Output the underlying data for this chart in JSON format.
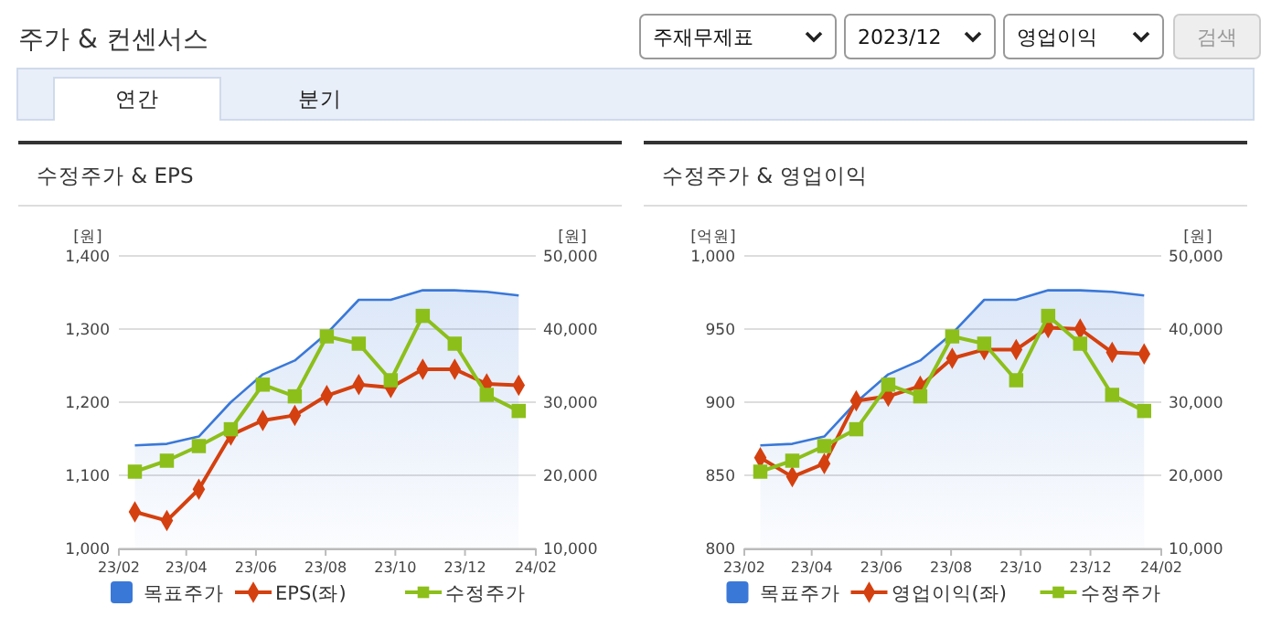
{
  "chart_data": [
    {
      "type": "other",
      "title": "주가 & 컨센서스",
      "annotations": [
        "주재무제표",
        "2023/12",
        "영업이익",
        "검색",
        "연간",
        "분기"
      ]
    },
    {
      "type": "line",
      "title": "수정주가 & EPS",
      "ylabel": "[원]",
      "y2label": "[원]",
      "x": [
        "2023-02-15",
        "2023-03-15",
        "2023-04-12",
        "2023-05-10",
        "2023-06-07",
        "2023-07-05",
        "2023-08-02",
        "2023-08-30",
        "2023-09-27",
        "2023-10-25",
        "2023-11-22",
        "2023-12-20",
        "2024-01-17"
      ],
      "xlim": [
        "2023-02",
        "2024-02"
      ],
      "xticks": [
        {
          "value": "2023-02",
          "label": "23/02"
        },
        {
          "value": "2023-04",
          "label": "23/04"
        },
        {
          "value": "2023-06",
          "label": "23/06"
        },
        {
          "value": "2023-08",
          "label": "23/08"
        },
        {
          "value": "2023-10",
          "label": "23/10"
        },
        {
          "value": "2023-12",
          "label": "23/12"
        },
        {
          "value": "2024-02",
          "label": "24/02"
        }
      ],
      "ylim": [
        1000,
        1400
      ],
      "yticks": [
        {
          "value": 1000,
          "label": "1,000"
        },
        {
          "value": 1100,
          "label": "1,100"
        },
        {
          "value": 1200,
          "label": "1,200"
        },
        {
          "value": 1300,
          "label": "1,300"
        },
        {
          "value": 1400,
          "label": "1,400"
        }
      ],
      "y2lim": [
        10000,
        50000
      ],
      "y2ticks": [
        {
          "value": 10000,
          "label": "10,000"
        },
        {
          "value": 20000,
          "label": "20,000"
        },
        {
          "value": 30000,
          "label": "30,000"
        },
        {
          "value": 40000,
          "label": "40,000"
        },
        {
          "value": 50000,
          "label": "50,000"
        }
      ],
      "grid": "y",
      "legend": "bottom",
      "series": [
        {
          "name": "목표주가",
          "type": "area",
          "axis": "y2",
          "color": "#3a78d8",
          "values": [
            24100,
            24300,
            25300,
            30000,
            33800,
            35700,
            39400,
            44000,
            44000,
            45300,
            45300,
            45100,
            44600
          ]
        },
        {
          "name": "EPS(좌)",
          "type": "line",
          "color": "#d4400f",
          "marker": "diamond",
          "values": [
            1050,
            1038,
            1081,
            1155,
            1175,
            1182,
            1209,
            1224,
            1220,
            1245,
            1245,
            1225,
            1223
          ]
        },
        {
          "name": "수정주가",
          "type": "line",
          "axis": "y2",
          "color": "#8cbf1a",
          "marker": "square",
          "values": [
            20500,
            22000,
            24000,
            26300,
            32400,
            30800,
            39000,
            38000,
            33000,
            41800,
            38000,
            31000,
            28800
          ]
        }
      ]
    },
    {
      "type": "line",
      "title": "수정주가 & 영업이익",
      "ylabel": "[억원]",
      "y2label": "[원]",
      "x": [
        "2023-02-15",
        "2023-03-15",
        "2023-04-12",
        "2023-05-10",
        "2023-06-07",
        "2023-07-05",
        "2023-08-02",
        "2023-08-30",
        "2023-09-27",
        "2023-10-25",
        "2023-11-22",
        "2023-12-20",
        "2024-01-17"
      ],
      "xlim": [
        "2023-02",
        "2024-02"
      ],
      "xticks": [
        {
          "value": "2023-02",
          "label": "23/02"
        },
        {
          "value": "2023-04",
          "label": "23/04"
        },
        {
          "value": "2023-06",
          "label": "23/06"
        },
        {
          "value": "2023-08",
          "label": "23/08"
        },
        {
          "value": "2023-10",
          "label": "23/10"
        },
        {
          "value": "2023-12",
          "label": "23/12"
        },
        {
          "value": "2024-02",
          "label": "24/02"
        }
      ],
      "ylim": [
        800,
        1000
      ],
      "yticks": [
        {
          "value": 800,
          "label": "800"
        },
        {
          "value": 850,
          "label": "850"
        },
        {
          "value": 900,
          "label": "900"
        },
        {
          "value": 950,
          "label": "950"
        },
        {
          "value": 1000,
          "label": "1,000"
        }
      ],
      "y2lim": [
        10000,
        50000
      ],
      "y2ticks": [
        {
          "value": 10000,
          "label": "10,000"
        },
        {
          "value": 20000,
          "label": "20,000"
        },
        {
          "value": 30000,
          "label": "30,000"
        },
        {
          "value": 40000,
          "label": "40,000"
        },
        {
          "value": 50000,
          "label": "50,000"
        }
      ],
      "grid": "y",
      "legend": "bottom",
      "series": [
        {
          "name": "목표주가",
          "type": "area",
          "axis": "y2",
          "color": "#3a78d8",
          "values": [
            24100,
            24300,
            25300,
            30000,
            33800,
            35700,
            39400,
            44000,
            44000,
            45300,
            45300,
            45100,
            44600
          ]
        },
        {
          "name": "영업이익(좌)",
          "type": "line",
          "color": "#d4400f",
          "marker": "diamond",
          "values": [
            862,
            849,
            858,
            901,
            904,
            911,
            930,
            936,
            936,
            951,
            950,
            934,
            933
          ]
        },
        {
          "name": "수정주가",
          "type": "line",
          "axis": "y2",
          "color": "#8cbf1a",
          "marker": "square",
          "values": [
            20500,
            22000,
            24000,
            26300,
            32400,
            30800,
            39000,
            38000,
            33000,
            41800,
            38000,
            31000,
            28800
          ]
        }
      ]
    }
  ]
}
